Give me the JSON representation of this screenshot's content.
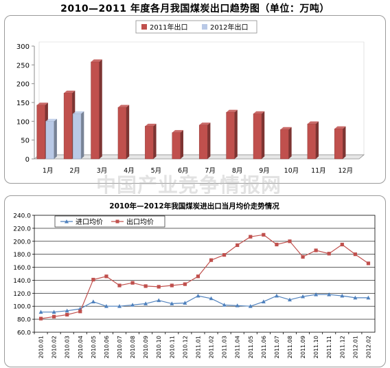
{
  "page_title": "2010—2011 年度各月我国煤炭出口趋势图（单位：万吨）",
  "watermark": "中国产业竞争情报网",
  "colors": {
    "bar_2011": "#c0504d",
    "bar_2012": "#b9c9e6",
    "export_line": "#c0504d",
    "import_line": "#4f81bd"
  },
  "chart_data": [
    {
      "type": "bar",
      "title": "",
      "categories": [
        "1月",
        "2月",
        "3月",
        "4月",
        "5月",
        "6月",
        "7月",
        "8月",
        "9月",
        "10月",
        "11月",
        "12月"
      ],
      "series": [
        {
          "name": "2011年出口",
          "values": [
            143,
            175,
            258,
            137,
            87,
            70,
            90,
            124,
            120,
            78,
            93,
            80
          ]
        },
        {
          "name": "2012年出口",
          "values": [
            100,
            120,
            null,
            null,
            null,
            null,
            null,
            null,
            null,
            null,
            null,
            null
          ]
        }
      ],
      "ylim": [
        0,
        300
      ],
      "yticks": [
        0,
        50,
        100,
        150,
        200,
        250,
        300
      ],
      "grid": false,
      "legend": "top-center"
    },
    {
      "type": "line",
      "title": "2010年—2012年我国煤炭进出口当月均价走势情况",
      "x": [
        "2010.01",
        "2010.02",
        "2010.03",
        "2010.04",
        "2010.05",
        "2010.06",
        "2010.07",
        "2010.08",
        "2010.09",
        "2010.10",
        "2010.11",
        "2010.12",
        "2011.01",
        "2011.02",
        "2011.03",
        "2011.04",
        "2011.05",
        "2011.06",
        "2011.07",
        "2011.08",
        "2011.09",
        "2011.10",
        "2011.11",
        "2011.12",
        "2012.01",
        "2012.02"
      ],
      "series": [
        {
          "name": "进口均价",
          "values": [
            91,
            91,
            93,
            96,
            107,
            100,
            100,
            102,
            104,
            109,
            104,
            105,
            116,
            112,
            102,
            101,
            100,
            107,
            116,
            110,
            115,
            118,
            118,
            116,
            113,
            113
          ]
        },
        {
          "name": "出口均价",
          "values": [
            81,
            84,
            87,
            92,
            141,
            146,
            132,
            136,
            131,
            130,
            132,
            134,
            146,
            171,
            179,
            194,
            207,
            210,
            195,
            200,
            176,
            186,
            181,
            195,
            180,
            166
          ]
        }
      ],
      "ylim": [
        60,
        240
      ],
      "yticks": [
        "60.0",
        "80.0",
        "100.0",
        "120.0",
        "140.0",
        "160.0",
        "180.0",
        "200.0",
        "220.0",
        "240.0"
      ],
      "grid": true,
      "legend": "top-left"
    }
  ]
}
